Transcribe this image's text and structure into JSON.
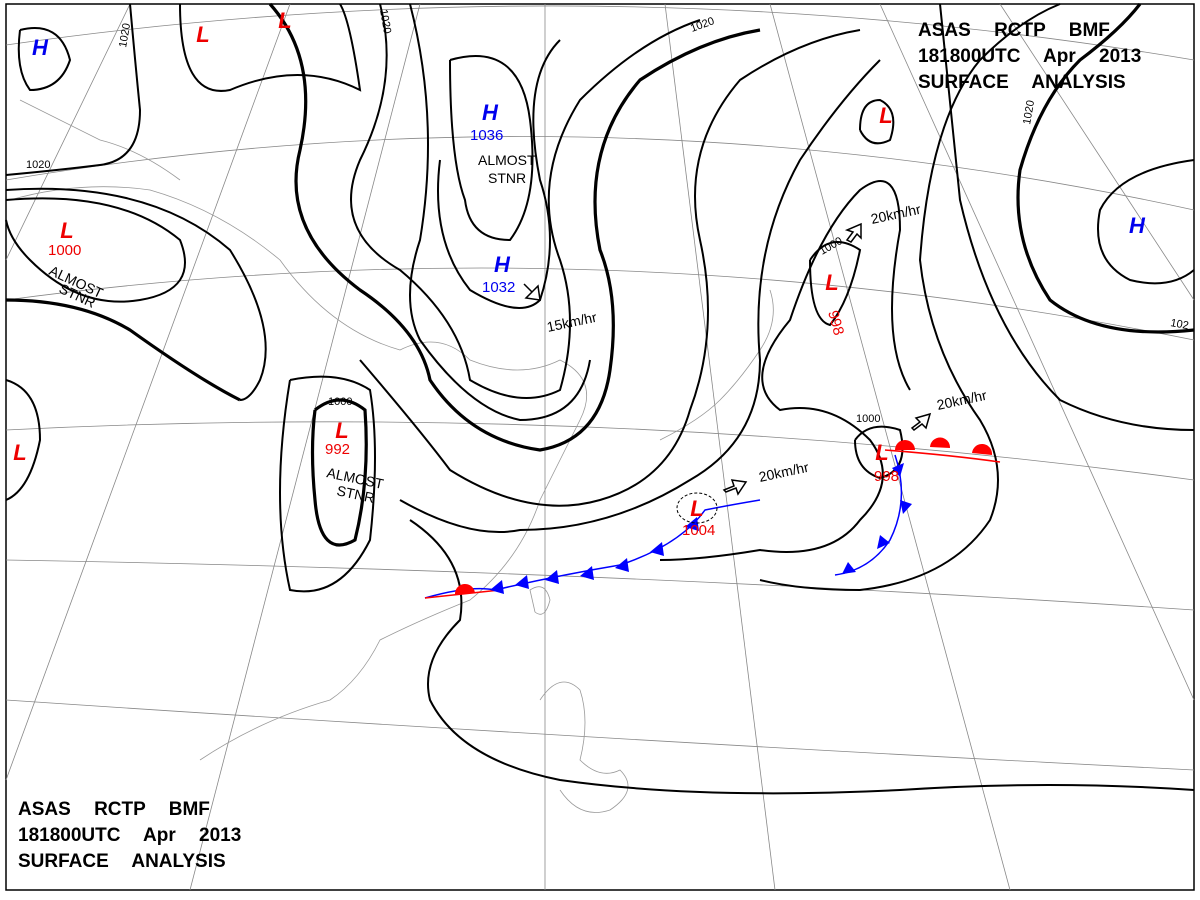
{
  "headers": [
    {
      "lines": [
        "ASAS RCTP BMF",
        "181800UTC Apr 2013",
        "SURFACE ANALYSIS"
      ]
    },
    {
      "lines": [
        "ASAS RCTP BMF",
        "181800UTC Apr 2013",
        "SURFACE ANALYSIS"
      ]
    }
  ],
  "systems": [
    {
      "symbol": "H"
    },
    {
      "symbol": "L"
    },
    {
      "symbol": "L"
    },
    {
      "symbol": "H",
      "pressure": 1036,
      "note": [
        "ALMOST",
        "STNR"
      ]
    },
    {
      "symbol": "H",
      "pressure": 1032,
      "speed": "15km/hr"
    },
    {
      "symbol": "L",
      "pressure": 1000,
      "note": [
        "ALMOST",
        "STNR"
      ]
    },
    {
      "symbol": "L",
      "pressure": 992,
      "note": [
        "ALMOST",
        "STNR"
      ]
    },
    {
      "symbol": "L"
    },
    {
      "symbol": "L",
      "pressure": 1004,
      "speed": "20km/hr"
    },
    {
      "symbol": "L",
      "pressure": 998,
      "speed": "20km/hr"
    },
    {
      "symbol": "L",
      "pressure": 998,
      "speed": "20km/hr"
    },
    {
      "symbol": "L"
    },
    {
      "symbol": "H"
    }
  ],
  "isobar_labels": [
    "1020",
    "1020",
    "1020",
    "1020",
    "1020",
    "1000",
    "1000",
    "1000",
    "102"
  ]
}
